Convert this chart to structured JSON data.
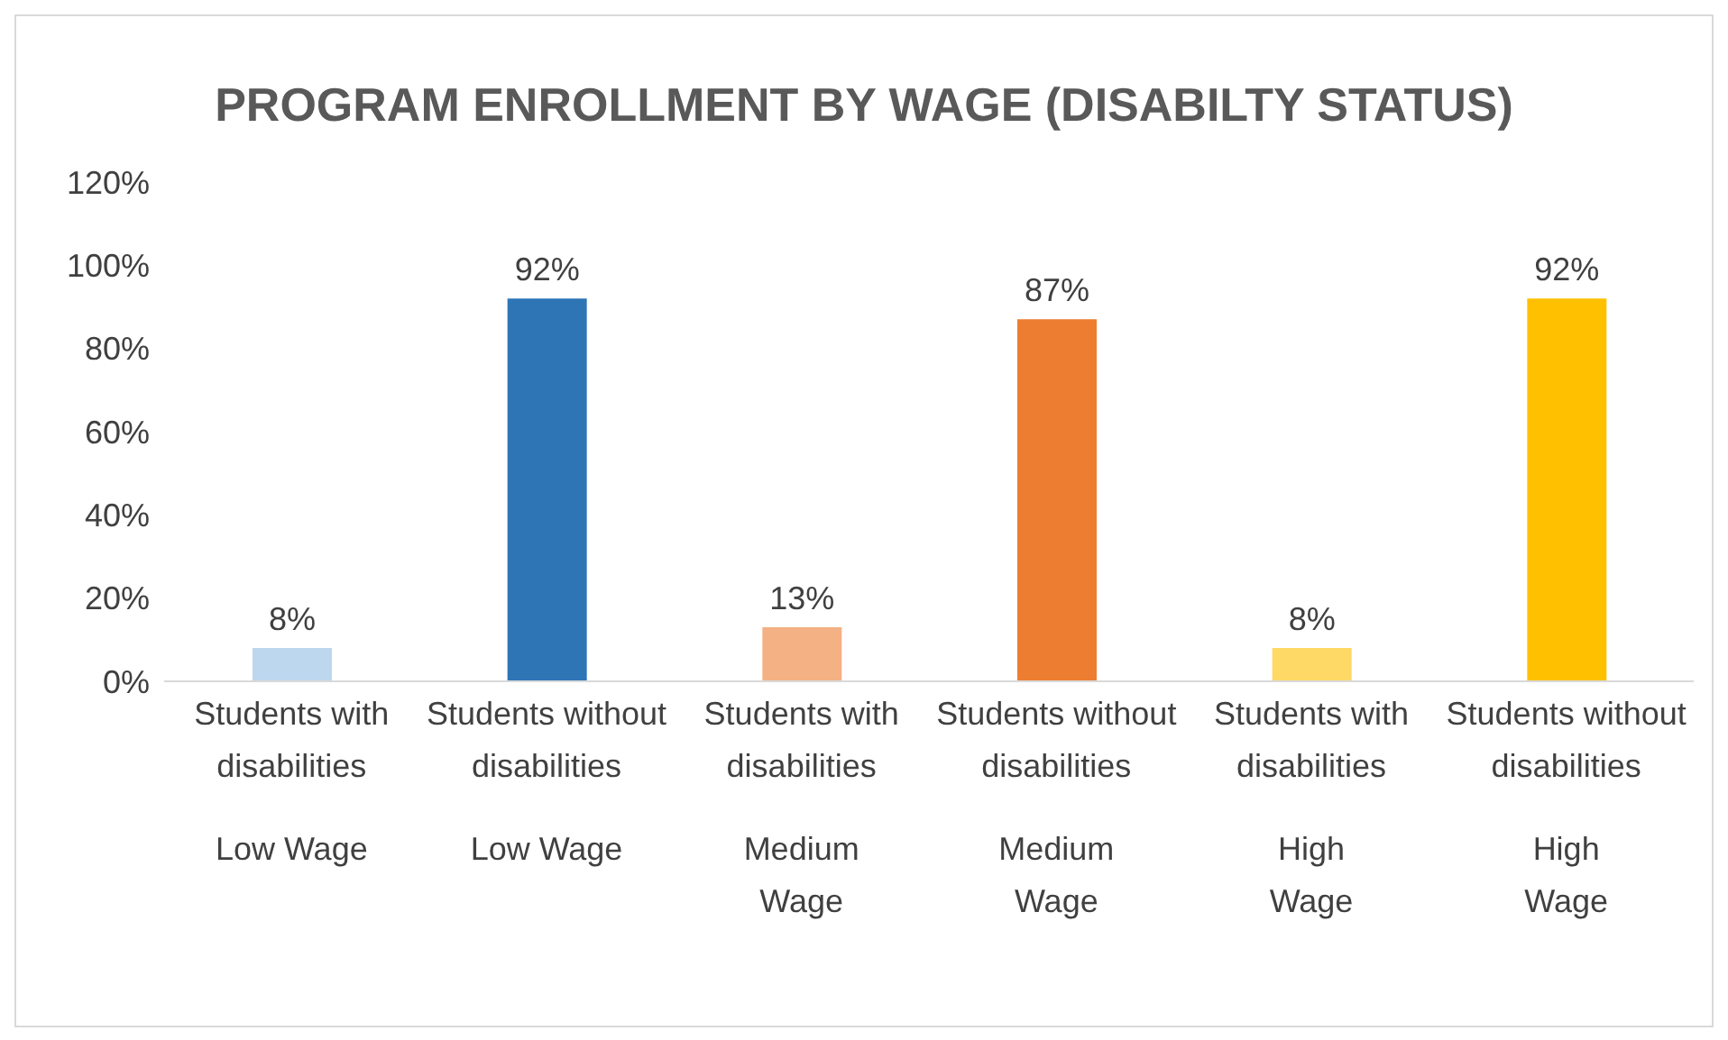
{
  "chart_data": {
    "type": "bar",
    "title": "PROGRAM ENROLLMENT BY WAGE (DISABILTY STATUS)",
    "categories": [
      "Students with disabilities\nLow Wage",
      "Students without disabilities\nLow Wage",
      "Students with disabilities\nMedium Wage",
      "Students without disabilities\nMedium Wage",
      "Students with disabilities\nHigh Wage",
      "Students without disabilities\nHigh Wage"
    ],
    "values": [
      8,
      92,
      13,
      87,
      8,
      92
    ],
    "colors": [
      "#bdd7ee",
      "#2e75b6",
      "#f4b183",
      "#ed7d31",
      "#ffd966",
      "#ffc000"
    ],
    "value_labels": [
      "8%",
      "92%",
      "13%",
      "87%",
      "8%",
      "92%"
    ],
    "ylim": [
      0,
      120
    ],
    "yticks": [
      {
        "value": 0,
        "label": "0%"
      },
      {
        "value": 20,
        "label": "20%"
      },
      {
        "value": 40,
        "label": "40%"
      },
      {
        "value": 60,
        "label": "60%"
      },
      {
        "value": 80,
        "label": "80%"
      },
      {
        "value": 100,
        "label": "100%"
      },
      {
        "value": 120,
        "label": "120%"
      }
    ],
    "grid": false,
    "legend": false
  }
}
